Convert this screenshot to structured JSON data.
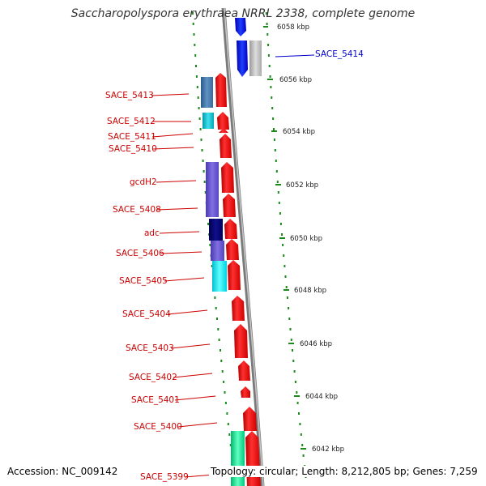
{
  "title": "Saccharopolyspora erythraea NRRL 2338, complete genome",
  "footer": {
    "accession": "Accession: NC_009142",
    "topology": "Topology: circular; Length: 8,212,805 bp; Genes: 7,259"
  },
  "kbp_ticks": [
    "6058 kbp",
    "6056 kbp",
    "6054 kbp",
    "6052 kbp",
    "6050 kbp",
    "6048 kbp",
    "6046 kbp",
    "6044 kbp",
    "6042 kbp"
  ],
  "gene_labels": [
    {
      "name": "SACE_5414",
      "color": "#0000cc"
    },
    {
      "name": "SACE_5413",
      "color": "#cc0000"
    },
    {
      "name": "SACE_5412",
      "color": "#cc0000"
    },
    {
      "name": "SACE_5411",
      "color": "#cc0000"
    },
    {
      "name": "SACE_5410",
      "color": "#cc0000"
    },
    {
      "name": "gcdH2",
      "color": "#cc0000"
    },
    {
      "name": "SACE_5408",
      "color": "#cc0000"
    },
    {
      "name": "adc",
      "color": "#cc0000"
    },
    {
      "name": "SACE_5406",
      "color": "#cc0000"
    },
    {
      "name": "SACE_5405",
      "color": "#cc0000"
    },
    {
      "name": "SACE_5404",
      "color": "#cc0000"
    },
    {
      "name": "SACE_5403",
      "color": "#cc0000"
    },
    {
      "name": "SACE_5402",
      "color": "#cc0000"
    },
    {
      "name": "SACE_5401",
      "color": "#cc0000"
    },
    {
      "name": "SACE_5400",
      "color": "#cc0000"
    },
    {
      "name": "SACE_5399",
      "color": "#cc0000"
    }
  ],
  "colors": {
    "backbone": "#888888",
    "gene_forward": "#ff1a1a",
    "gene_reverse": "#0000ff",
    "tick_dots": "#1a8a1a"
  }
}
